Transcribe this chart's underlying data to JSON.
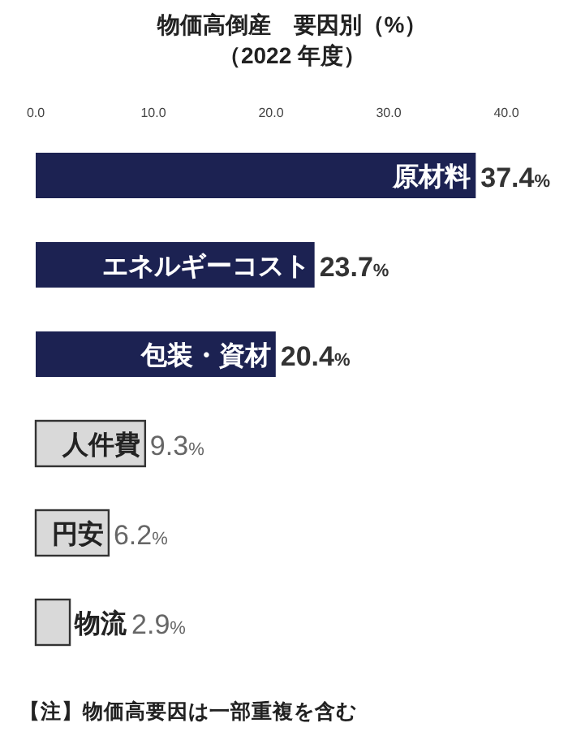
{
  "chart_data": {
    "type": "bar",
    "orientation": "horizontal",
    "title": "物価高倒産　要因別（%）",
    "subtitle": "（2022 年度）",
    "categories": [
      "原材料",
      "エネルギーコスト",
      "包装・資材",
      "人件費",
      "円安",
      "物流"
    ],
    "values": [
      37.4,
      23.7,
      20.4,
      9.3,
      6.2,
      2.9
    ],
    "value_labels": [
      "37.4%",
      "23.7%",
      "20.4%",
      "9.3%",
      "6.2%",
      "2.9%"
    ],
    "colors": [
      "#1c2252",
      "#1c2252",
      "#1c2252",
      "#d9d9d9",
      "#d9d9d9",
      "#d9d9d9"
    ],
    "xlim": [
      0,
      40
    ],
    "xticks": [
      {
        "value": 0,
        "label": "0.0"
      },
      {
        "value": 10,
        "label": "10.0"
      },
      {
        "value": 20,
        "label": "20.0"
      },
      {
        "value": 30,
        "label": "30.0"
      },
      {
        "value": 40,
        "label": "40.0"
      }
    ],
    "annotations": [
      "【注】物価高要因は一部重複を含む"
    ]
  }
}
